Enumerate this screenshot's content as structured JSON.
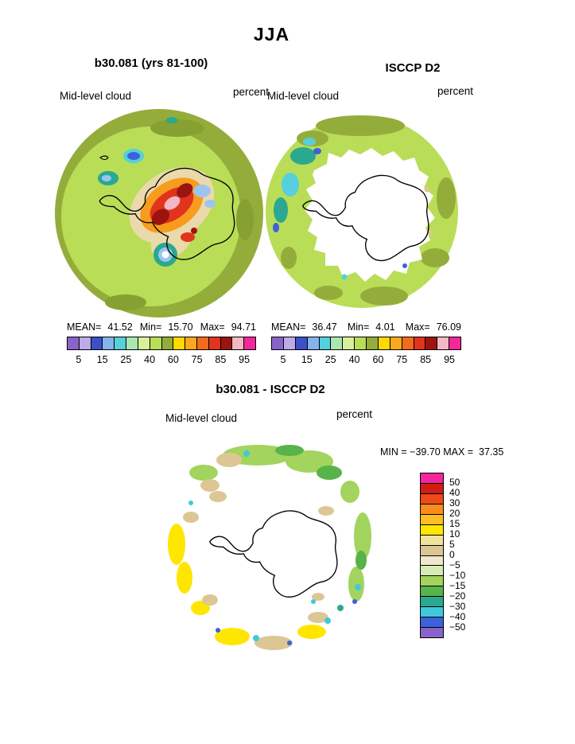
{
  "page": {
    "title": "JJA"
  },
  "panels": {
    "model": {
      "title": "b30.081 (yrs 81-100)",
      "field_label": "Mid-level cloud",
      "units": "percent",
      "stats": {
        "mean_label": "MEAN=",
        "mean": "41.52",
        "min_label": "Min=",
        "min": "15.70",
        "max_label": "Max=",
        "max": "94.71"
      }
    },
    "obs": {
      "title": "ISCCP D2",
      "field_label": "Mid-level cloud",
      "units": "percent",
      "stats": {
        "mean_label": "MEAN=",
        "mean": "36.47",
        "min_label": "Min=",
        "min": "4.01",
        "max_label": "Max=",
        "max": "76.09"
      }
    },
    "diff": {
      "title": "b30.081 - ISCCP D2",
      "field_label": "Mid-level cloud",
      "units": "percent",
      "minmax_text": "MIN = −39.70 MAX =  37.35"
    }
  },
  "scale": {
    "ticks": [
      "5",
      "15",
      "25",
      "40",
      "60",
      "75",
      "85",
      "95"
    ],
    "colors": [
      "#8a63c9",
      "#bcabe6",
      "#3c50c8",
      "#84b4ec",
      "#55d0dc",
      "#abe8b0",
      "#d9f09a",
      "#b9dd57",
      "#94ad3a",
      "#ffd900",
      "#fca81e",
      "#f56b1e",
      "#e0341c",
      "#9c1410",
      "#f2b8c4",
      "#f5259b"
    ]
  },
  "diff_scale": {
    "labels": [
      "50",
      "40",
      "30",
      "20",
      "15",
      "10",
      "5",
      "0",
      "−5",
      "−10",
      "−15",
      "−20",
      "−30",
      "−40",
      "−50"
    ],
    "colors": [
      "#f5259b",
      "#d01c14",
      "#ee4a18",
      "#fc8c1c",
      "#fdbe24",
      "#ffe600",
      "#efe29c",
      "#dcc794",
      "#f0e8cc",
      "#d6ecb2",
      "#a2d45e",
      "#57b34a",
      "#2aa890",
      "#41c8dc",
      "#3b62dc",
      "#8a63c9"
    ]
  },
  "chart_data": [
    {
      "type": "heatmap",
      "subtype": "south-polar-stereographic-contour-map",
      "season": "JJA",
      "title": "b30.081 (yrs 81-100)",
      "variable": "Mid-level cloud",
      "units": "percent",
      "stats": {
        "mean": 41.52,
        "min": 15.7,
        "max": 94.71
      },
      "contour_levels": [
        5,
        10,
        15,
        20,
        25,
        30,
        40,
        50,
        60,
        70,
        75,
        80,
        85,
        90,
        95
      ],
      "labeled_levels": [
        5,
        15,
        25,
        40,
        60,
        75,
        85,
        95
      ],
      "legend_position": "bottom"
    },
    {
      "type": "heatmap",
      "subtype": "south-polar-stereographic-contour-map",
      "season": "JJA",
      "title": "ISCCP D2",
      "variable": "Mid-level cloud",
      "units": "percent",
      "stats": {
        "mean": 36.47,
        "min": 4.01,
        "max": 76.09
      },
      "contour_levels": [
        5,
        10,
        15,
        20,
        25,
        30,
        40,
        50,
        60,
        70,
        75,
        80,
        85,
        90,
        95
      ],
      "labeled_levels": [
        5,
        15,
        25,
        40,
        60,
        75,
        85,
        95
      ],
      "legend_position": "bottom"
    },
    {
      "type": "heatmap",
      "subtype": "south-polar-stereographic-contour-map",
      "season": "JJA",
      "title": "b30.081 - ISCCP D2",
      "variable": "Mid-level cloud",
      "units": "percent",
      "stats": {
        "min": -39.7,
        "max": 37.35
      },
      "contour_levels": [
        -50,
        -40,
        -30,
        -20,
        -15,
        -10,
        -5,
        0,
        5,
        10,
        15,
        20,
        30,
        40,
        50
      ],
      "legend_position": "right"
    }
  ]
}
